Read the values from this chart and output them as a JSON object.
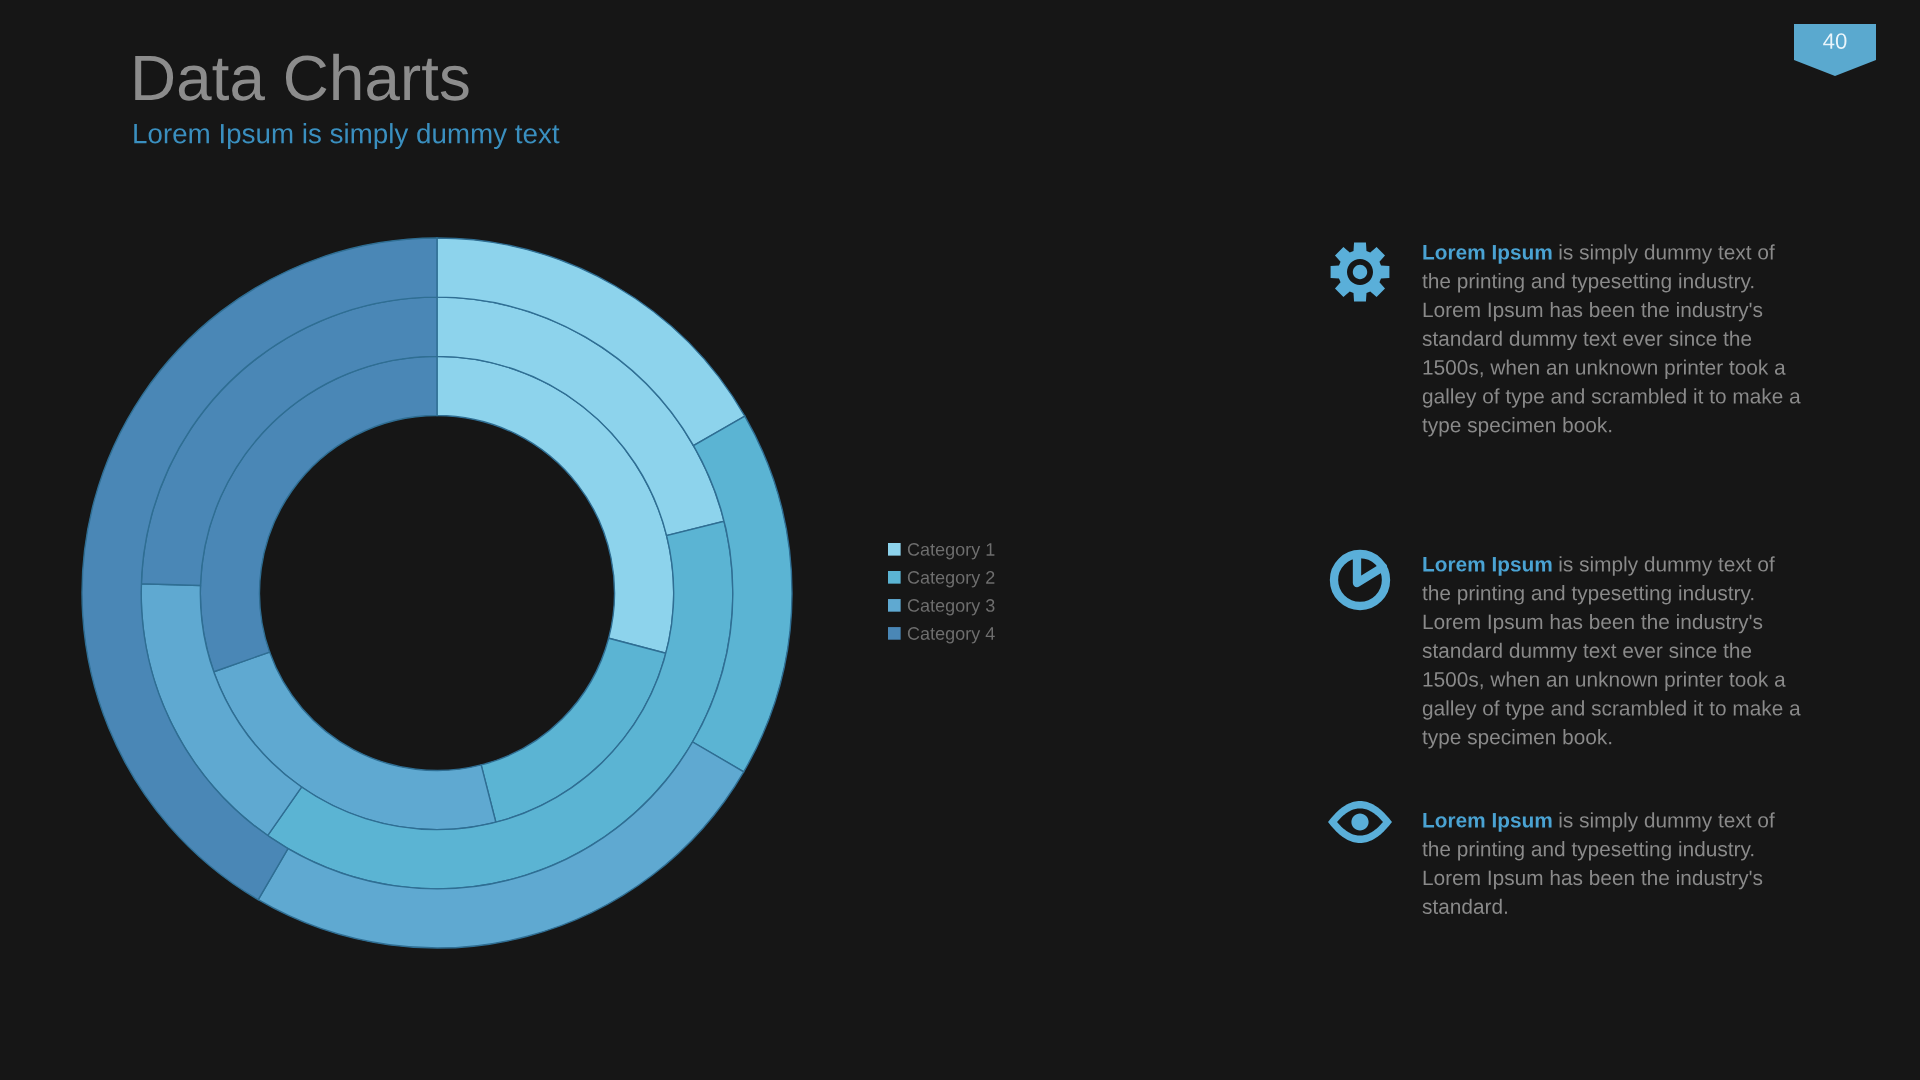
{
  "chart_data": [
    {
      "type": "donut",
      "title": "Data Charts",
      "subtitle": "Lorem Ipsum is simply dummy text",
      "categories": [
        "Category 1",
        "Category 2",
        "Category 3",
        "Category 4"
      ],
      "colors": [
        "#8dd3ec",
        "#5bb4d3",
        "#5fa9d1",
        "#4a87b6"
      ],
      "series": [
        {
          "values": [
            29.1,
            16.9,
            23.6,
            30.4
          ]
        },
        {
          "values": [
            21.1,
            38.6,
            15.8,
            24.5
          ]
        },
        {
          "values": [
            16.7,
            16.7,
            25,
            41.6
          ]
        }
      ],
      "legend": "right",
      "annotations": [
        "40"
      ]
    },
    {
      "type": "other",
      "annotations": [
        "Lorem Ipsum is simply dummy text of the printing and typesetting industry. Lorem Ipsum has been the industry's standard dummy text ever since the 1500s, when an unknown printer took a galley of type and scrambled it to make a type specimen book.",
        "Lorem Ipsum is simply dummy text of the printing and typesetting industry. Lorem Ipsum has been the industry's standard dummy text ever since the 1500s, when an unknown printer took a galley of type and scrambled it to make a type specimen book.",
        "Lorem Ipsum is simply dummy text of the printing and typesetting industry. Lorem Ipsum has been the industry's standard."
      ]
    }
  ]
}
